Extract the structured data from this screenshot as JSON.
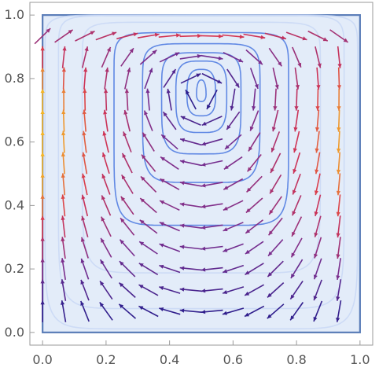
{
  "chart_data": {
    "type": "vector-field",
    "title": "",
    "xlabel": "",
    "ylabel": "",
    "xlim": [
      -0.04,
      1.04
    ],
    "ylim": [
      -0.04,
      1.04
    ],
    "x_ticks": [
      {
        "value": 0.0,
        "label": "0.0"
      },
      {
        "value": 0.2,
        "label": "0.2"
      },
      {
        "value": 0.4,
        "label": "0.4"
      },
      {
        "value": 0.6,
        "label": "0.6"
      },
      {
        "value": 0.8,
        "label": "0.8"
      },
      {
        "value": 1.0,
        "label": "1.0"
      }
    ],
    "y_ticks": [
      {
        "value": 0.0,
        "label": "0.0"
      },
      {
        "value": 0.2,
        "label": "0.2"
      },
      {
        "value": 0.4,
        "label": "0.4"
      },
      {
        "value": 0.6,
        "label": "0.6"
      },
      {
        "value": 0.8,
        "label": "0.8"
      },
      {
        "value": 1.0,
        "label": "1.0"
      }
    ],
    "region": {
      "x": [
        0,
        1
      ],
      "y": [
        0,
        1
      ],
      "fill": "#e3ecf9",
      "edge": "#5a7db8"
    },
    "vortex_center": [
      0.5,
      0.75
    ],
    "lid_speed": 1,
    "arrow_grid_step": 0.0667,
    "streamline_levels": [
      0.03,
      0.09,
      0.16,
      0.25,
      0.37,
      0.55,
      0.75,
      0.9,
      0.985
    ],
    "colors": {
      "slow": "#1a1a8c",
      "medium": "#7a2f8f",
      "fast": "#d8344f",
      "fastest": "#f5b526",
      "streamline": "#4a78e0",
      "streamline_light": "#c9d8f6"
    },
    "frame": true,
    "grid": false
  }
}
